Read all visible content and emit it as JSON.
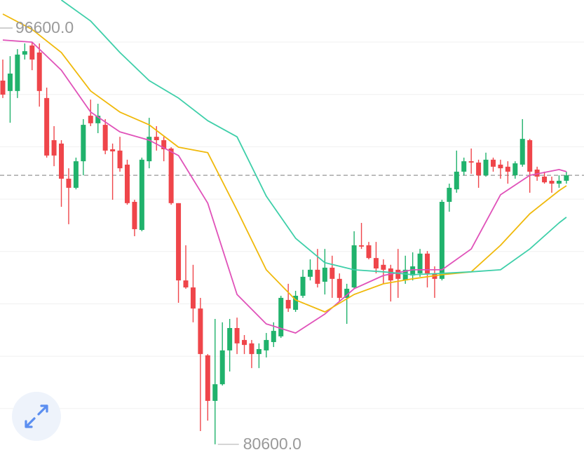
{
  "chart_data": {
    "type": "candlestick",
    "ylim": [
      80113,
      97678
    ],
    "up_color": "#20b26c",
    "down_color": "#ef454a",
    "candles": {
      "open": [
        94580,
        94180,
        94180,
        95580,
        95930,
        95660,
        93910,
        92290,
        92160,
        90810,
        90460,
        91480,
        93230,
        92940,
        92880,
        91940,
        91890,
        91350,
        89920,
        88840,
        91480,
        92420,
        92290,
        91970,
        89870,
        86900,
        86630,
        85820,
        84020,
        82270,
        82910,
        84210,
        85070,
        84610,
        84480,
        84070,
        84210,
        84530,
        84750,
        86150,
        85770,
        86310,
        87040,
        87310,
        86850,
        87390,
        86960,
        86230,
        86630,
        88250,
        88250,
        87760,
        87500,
        87360,
        87310,
        86900,
        87090,
        87170,
        87930,
        87170,
        86960,
        89920,
        90400,
        91080,
        91480,
        91430,
        90940,
        91540,
        91350,
        91270,
        90940,
        91350,
        92290,
        91160,
        90890,
        90730,
        90620,
        90730
      ],
      "high": [
        95390,
        95520,
        95790,
        96010,
        96060,
        96010,
        94310,
        92830,
        92290,
        91210,
        91620,
        93100,
        93850,
        93690,
        93100,
        92160,
        92420,
        91540,
        90000,
        91620,
        93150,
        92830,
        92420,
        92020,
        89870,
        88250,
        87500,
        86230,
        84070,
        85420,
        85290,
        85420,
        85470,
        84800,
        84610,
        84480,
        84880,
        85290,
        86310,
        86770,
        86500,
        87310,
        87710,
        88110,
        88110,
        87850,
        87170,
        86770,
        88790,
        89110,
        88380,
        88380,
        87710,
        87500,
        88110,
        87850,
        87980,
        88110,
        88030,
        87440,
        90000,
        90620,
        91890,
        91620,
        91970,
        91540,
        91810,
        91620,
        91540,
        91480,
        91480,
        93100,
        92340,
        91270,
        91080,
        90890,
        90940,
        91080
      ],
      "low": [
        93910,
        92960,
        93910,
        95390,
        94980,
        93580,
        91620,
        91290,
        89730,
        89060,
        90400,
        90940,
        92830,
        92560,
        91750,
        90000,
        91080,
        89810,
        88600,
        88790,
        91210,
        91890,
        91480,
        89810,
        86040,
        86580,
        85290,
        81110,
        81510,
        80600,
        82860,
        83400,
        84070,
        84070,
        83530,
        83530,
        83940,
        84340,
        84690,
        85690,
        85690,
        86230,
        86900,
        86630,
        86360,
        86230,
        86090,
        85230,
        86580,
        88110,
        87710,
        87170,
        86770,
        86090,
        86230,
        86770,
        86900,
        87040,
        86630,
        86230,
        86900,
        89540,
        90270,
        90940,
        91000,
        90460,
        90890,
        91080,
        90810,
        90620,
        90810,
        91270,
        90270,
        90730,
        90620,
        90270,
        90460,
        90620
      ],
      "close": [
        94040,
        94850,
        95580,
        95710,
        95390,
        94180,
        91700,
        91700,
        90810,
        90460,
        91480,
        92880,
        92940,
        93230,
        91890,
        91860,
        91210,
        89870,
        88870,
        91540,
        92420,
        92290,
        91940,
        89870,
        86900,
        86630,
        85820,
        84070,
        82270,
        82910,
        84210,
        85070,
        84480,
        84420,
        84070,
        84260,
        84610,
        84960,
        86230,
        85820,
        86310,
        87040,
        87310,
        86770,
        87390,
        86960,
        86230,
        86580,
        88250,
        88200,
        87760,
        87360,
        87310,
        86900,
        86960,
        87310,
        87440,
        87930,
        87170,
        86960,
        89920,
        90460,
        91080,
        91480,
        91430,
        90940,
        91540,
        91270,
        91210,
        91080,
        91400,
        92340,
        91080,
        90890,
        90670,
        90620,
        90730,
        90940
      ]
    },
    "series": [
      {
        "color": "#e052b9",
        "x": [
          0,
          4,
          8,
          12,
          16,
          20,
          24,
          28,
          32,
          36,
          40,
          44,
          48,
          52,
          56,
          60,
          64,
          68,
          72,
          76,
          77
        ],
        "values": [
          96140,
          96060,
          94980,
          93370,
          92610,
          92290,
          91700,
          89870,
          86360,
          85230,
          84880,
          85610,
          86580,
          87090,
          87310,
          87310,
          88110,
          90190,
          90940,
          91160,
          91080
        ]
      },
      {
        "color": "#f0b90b",
        "x": [
          0,
          4,
          8,
          12,
          16,
          20,
          24,
          28,
          32,
          36,
          40,
          44,
          48,
          52,
          56,
          60,
          64,
          68,
          72,
          76,
          77
        ],
        "values": [
          97140,
          96550,
          95660,
          94180,
          93370,
          92880,
          92020,
          91810,
          89600,
          87310,
          86150,
          85690,
          86360,
          86770,
          86960,
          87120,
          87230,
          88250,
          89460,
          90350,
          90540
        ]
      },
      {
        "color": "#3ecfa9",
        "x": [
          0,
          4,
          8,
          12,
          16,
          20,
          24,
          28,
          32,
          36,
          40,
          44,
          48,
          52,
          56,
          60,
          64,
          68,
          72,
          76,
          77
        ],
        "values": [
          null,
          null,
          97678,
          96870,
          95660,
          94580,
          93910,
          93040,
          92420,
          90140,
          88520,
          87580,
          87310,
          87230,
          87120,
          87170,
          87230,
          87310,
          88110,
          89110,
          89330
        ]
      }
    ],
    "annotations": [
      {
        "value": 96600,
        "label": "96600.0"
      },
      {
        "value": 80600,
        "label": "80600.0"
      }
    ]
  }
}
